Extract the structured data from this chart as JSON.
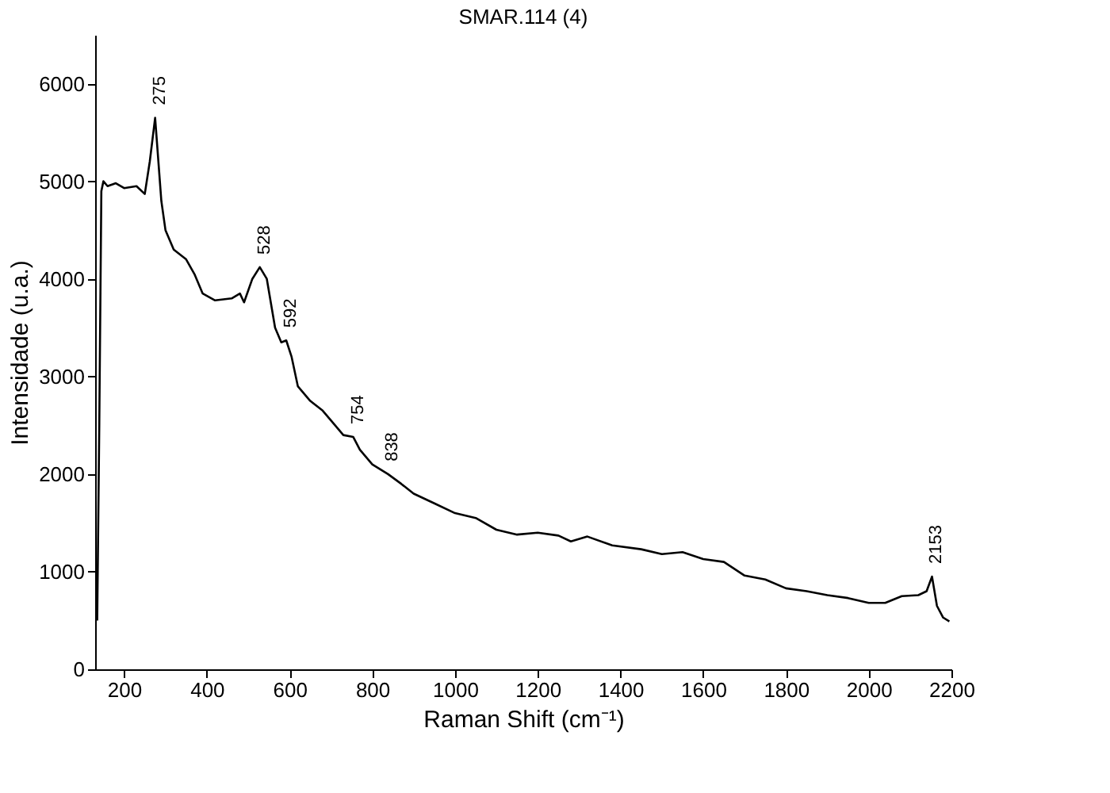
{
  "chart_data": {
    "type": "line",
    "title": "SMAR.114 (4)",
    "xlabel": "Raman Shift (cm⁻¹)",
    "ylabel": "Intensidade (u.a.)",
    "xlim": [
      130,
      2200
    ],
    "ylim": [
      0,
      6500
    ],
    "xticks": [
      200,
      400,
      600,
      800,
      1000,
      1200,
      1400,
      1600,
      1800,
      2000,
      2200
    ],
    "yticks": [
      0,
      1000,
      2000,
      3000,
      4000,
      5000,
      6000
    ],
    "grid": false,
    "marker": "none",
    "line_style": "solid",
    "x": [
      135,
      140,
      145,
      150,
      160,
      180,
      200,
      230,
      250,
      262,
      275,
      290,
      300,
      320,
      350,
      370,
      390,
      420,
      460,
      480,
      490,
      510,
      528,
      545,
      565,
      580,
      592,
      605,
      620,
      650,
      680,
      700,
      730,
      754,
      770,
      800,
      838,
      870,
      900,
      950,
      1000,
      1050,
      1100,
      1150,
      1200,
      1250,
      1280,
      1320,
      1380,
      1450,
      1500,
      1550,
      1600,
      1650,
      1700,
      1750,
      1800,
      1850,
      1900,
      1950,
      2000,
      2040,
      2080,
      2120,
      2140,
      2153,
      2165,
      2180,
      2195
    ],
    "series": [
      {
        "color": "#000000",
        "values": [
          500,
          2500,
          4900,
          5000,
          4950,
          4980,
          4930,
          4950,
          4870,
          5200,
          5650,
          4800,
          4500,
          4300,
          4200,
          4050,
          3850,
          3780,
          3800,
          3850,
          3760,
          4000,
          4120,
          4000,
          3500,
          3350,
          3370,
          3200,
          2900,
          2750,
          2650,
          2550,
          2400,
          2380,
          2250,
          2100,
          2000,
          1900,
          1800,
          1700,
          1600,
          1550,
          1430,
          1380,
          1400,
          1370,
          1310,
          1360,
          1270,
          1230,
          1180,
          1200,
          1130,
          1100,
          960,
          920,
          830,
          800,
          760,
          730,
          680,
          680,
          750,
          760,
          800,
          950,
          650,
          530,
          490
        ]
      }
    ],
    "annotations": [
      {
        "text": "275",
        "x": 275,
        "y": 5650
      },
      {
        "text": "528",
        "x": 528,
        "y": 4120
      },
      {
        "text": "592",
        "x": 592,
        "y": 3370
      },
      {
        "text": "754",
        "x": 754,
        "y": 2380
      },
      {
        "text": "838",
        "x": 838,
        "y": 2000
      },
      {
        "text": "2153",
        "x": 2153,
        "y": 950
      }
    ]
  }
}
